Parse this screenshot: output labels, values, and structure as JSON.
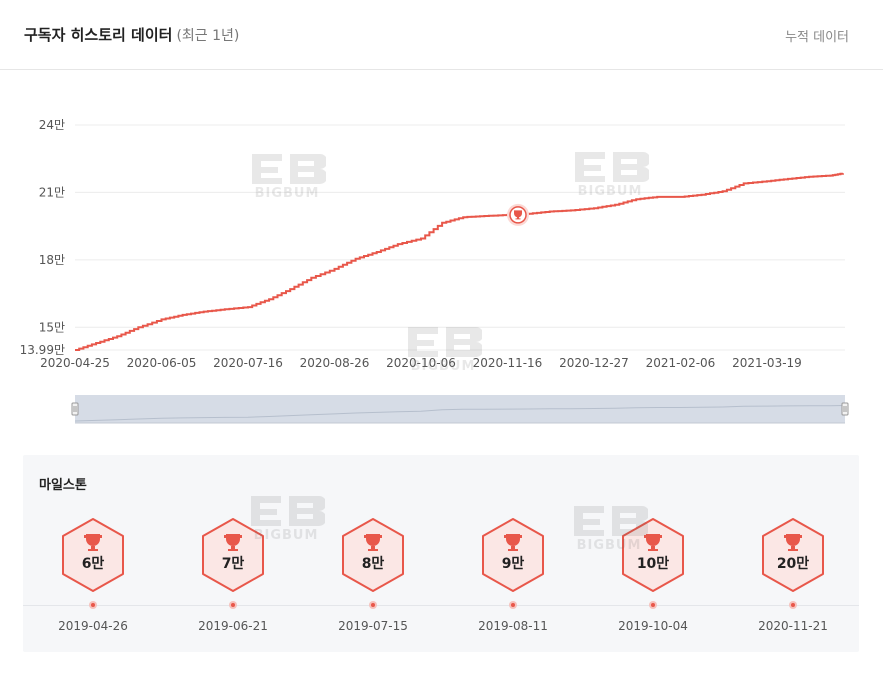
{
  "header": {
    "title": "구독자 히스토리 데이터",
    "subtitle": "(최근 1년)",
    "cumulative_label": "누적 데이터"
  },
  "watermark": {
    "text": "BIGBUM"
  },
  "colors": {
    "line": "#e8574a",
    "grid": "#ececec",
    "axis_text": "#555555",
    "navigator_fill": "#d6dce6",
    "milestone_bg": "#fbe7e5",
    "milestone_border": "#e8574a"
  },
  "chart_data": {
    "type": "line",
    "title": "",
    "xlabel": "",
    "ylabel": "",
    "ylim": [
      13.99,
      24
    ],
    "y_ticks": [
      {
        "value": 24,
        "label": "24만"
      },
      {
        "value": 21,
        "label": "21만"
      },
      {
        "value": 18,
        "label": "18만"
      },
      {
        "value": 15,
        "label": "15만"
      },
      {
        "value": 13.99,
        "label": "13.99만"
      }
    ],
    "x_tick_labels": [
      "2020-04-25",
      "2020-06-05",
      "2020-07-16",
      "2020-08-26",
      "2020-10-06",
      "2020-11-16",
      "2020-12-27",
      "2021-02-06",
      "2021-03-19"
    ],
    "x_range": [
      "2020-04-25",
      "2021-04-25"
    ],
    "grid": true,
    "series": [
      {
        "unit": "만",
        "points": [
          {
            "x": "2020-04-25",
            "y": 13.99
          },
          {
            "x": "2020-05-05",
            "y": 14.3
          },
          {
            "x": "2020-05-15",
            "y": 14.6
          },
          {
            "x": "2020-05-25",
            "y": 15.0
          },
          {
            "x": "2020-06-05",
            "y": 15.35
          },
          {
            "x": "2020-06-15",
            "y": 15.55
          },
          {
            "x": "2020-06-25",
            "y": 15.7
          },
          {
            "x": "2020-07-05",
            "y": 15.8
          },
          {
            "x": "2020-07-16",
            "y": 15.9
          },
          {
            "x": "2020-07-26",
            "y": 16.25
          },
          {
            "x": "2020-08-05",
            "y": 16.7
          },
          {
            "x": "2020-08-15",
            "y": 17.2
          },
          {
            "x": "2020-08-26",
            "y": 17.6
          },
          {
            "x": "2020-09-05",
            "y": 18.05
          },
          {
            "x": "2020-09-15",
            "y": 18.35
          },
          {
            "x": "2020-09-25",
            "y": 18.7
          },
          {
            "x": "2020-10-06",
            "y": 18.95
          },
          {
            "x": "2020-10-16",
            "y": 19.65
          },
          {
            "x": "2020-10-26",
            "y": 19.9
          },
          {
            "x": "2020-11-05",
            "y": 19.95
          },
          {
            "x": "2020-11-16",
            "y": 20.0
          },
          {
            "x": "2020-11-26",
            "y": 20.05
          },
          {
            "x": "2020-12-06",
            "y": 20.15
          },
          {
            "x": "2020-12-16",
            "y": 20.2
          },
          {
            "x": "2020-12-27",
            "y": 20.3
          },
          {
            "x": "2021-01-06",
            "y": 20.45
          },
          {
            "x": "2021-01-16",
            "y": 20.7
          },
          {
            "x": "2021-01-26",
            "y": 20.8
          },
          {
            "x": "2021-02-06",
            "y": 20.8
          },
          {
            "x": "2021-02-16",
            "y": 20.9
          },
          {
            "x": "2021-02-26",
            "y": 21.05
          },
          {
            "x": "2021-03-08",
            "y": 21.4
          },
          {
            "x": "2021-03-19",
            "y": 21.5
          },
          {
            "x": "2021-03-29",
            "y": 21.6
          },
          {
            "x": "2021-04-08",
            "y": 21.7
          },
          {
            "x": "2021-04-18",
            "y": 21.75
          },
          {
            "x": "2021-04-24",
            "y": 21.85
          }
        ]
      }
    ],
    "milestone_marker": {
      "x": "2020-11-21",
      "y": 20.0,
      "icon": "trophy-icon"
    }
  },
  "milestones": {
    "title": "마일스톤",
    "items": [
      {
        "label": "6만",
        "date": "2019-04-26",
        "icon": "trophy-icon"
      },
      {
        "label": "7만",
        "date": "2019-06-21",
        "icon": "trophy-icon"
      },
      {
        "label": "8만",
        "date": "2019-07-15",
        "icon": "trophy-icon"
      },
      {
        "label": "9만",
        "date": "2019-08-11",
        "icon": "trophy-icon"
      },
      {
        "label": "10만",
        "date": "2019-10-04",
        "icon": "trophy-icon"
      },
      {
        "label": "20만",
        "date": "2020-11-21",
        "icon": "trophy-icon"
      }
    ]
  }
}
